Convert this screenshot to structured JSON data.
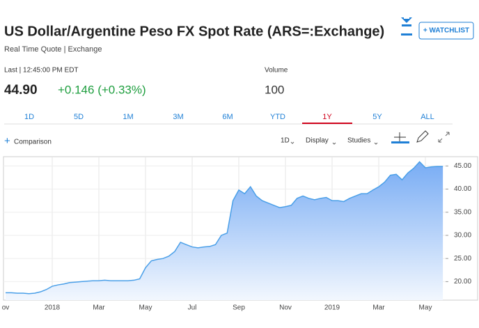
{
  "header": {
    "title": "US Dollar/Argentine Peso FX Spot Rate (ARS=:Exchange)",
    "subtitle": "Real Time Quote | Exchange",
    "watchlist": "+ WATCHLIST"
  },
  "quote": {
    "last_label": "Last | 12:45:00 PM EDT",
    "last": "44.90",
    "change": "+0.146 (+0.33%)",
    "volume_label": "Volume",
    "volume": "100"
  },
  "tabs": {
    "items": [
      "1D",
      "5D",
      "1M",
      "3M",
      "6M",
      "YTD",
      "1Y",
      "5Y",
      "ALL"
    ],
    "active": "1Y"
  },
  "toolbar": {
    "comparison": "Comparison",
    "interval": "1D",
    "display": "Display",
    "studies": "Studies"
  },
  "chart_data": {
    "type": "area",
    "color": "#4a9fe8",
    "categories": [
      "ov",
      null,
      null,
      null,
      null,
      null,
      null,
      null,
      "2018",
      null,
      null,
      null,
      null,
      null,
      null,
      null,
      "Mar",
      null,
      null,
      null,
      null,
      null,
      null,
      null,
      "May",
      null,
      null,
      null,
      null,
      null,
      null,
      null,
      "Jul",
      null,
      null,
      null,
      null,
      null,
      null,
      null,
      "Sep",
      null,
      null,
      null,
      null,
      null,
      null,
      null,
      "Nov",
      null,
      null,
      null,
      null,
      null,
      null,
      null,
      "2019",
      null,
      null,
      null,
      null,
      null,
      null,
      null,
      "Mar",
      null,
      null,
      null,
      null,
      null,
      null,
      null,
      "May",
      null,
      null,
      null
    ],
    "values": [
      17.6,
      17.6,
      17.5,
      17.5,
      17.4,
      17.5,
      17.8,
      18.3,
      19.0,
      19.3,
      19.5,
      19.8,
      19.9,
      20.0,
      20.1,
      20.2,
      20.2,
      20.3,
      20.2,
      20.2,
      20.2,
      20.2,
      20.3,
      20.6,
      23.0,
      24.5,
      24.8,
      25.0,
      25.5,
      26.5,
      28.5,
      28.0,
      27.5,
      27.3,
      27.5,
      27.6,
      28.0,
      30.0,
      30.5,
      37.5,
      39.8,
      39.0,
      40.5,
      38.5,
      37.5,
      37.0,
      36.5,
      36.0,
      36.2,
      36.5,
      38.0,
      38.5,
      38.0,
      37.7,
      38.0,
      38.2,
      37.5,
      37.5,
      37.3,
      38.0,
      38.5,
      39.0,
      39.0,
      39.8,
      40.5,
      41.5,
      43.0,
      43.2,
      42.0,
      43.5,
      44.5,
      45.9,
      44.6,
      44.8,
      44.9,
      44.9
    ],
    "ylim": [
      16,
      47
    ],
    "yticks": [
      {
        "value": 20,
        "label": "20.00"
      },
      {
        "value": 25,
        "label": "25.00"
      },
      {
        "value": 30,
        "label": "30.00"
      },
      {
        "value": 35,
        "label": "35.00"
      },
      {
        "value": 40,
        "label": "40.00"
      },
      {
        "value": 45,
        "label": "45.00"
      }
    ],
    "grid": true
  }
}
